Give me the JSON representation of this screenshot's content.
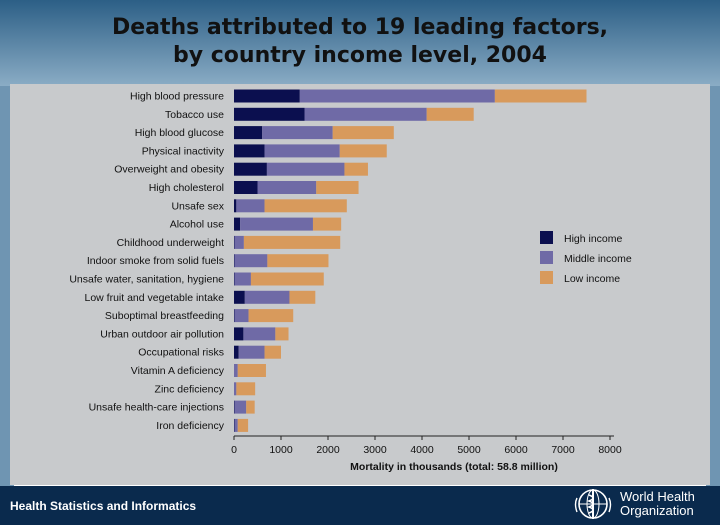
{
  "title": {
    "line1": "Deaths attributed to 19 leading factors,",
    "line2": "by country income level, 2004"
  },
  "footer": {
    "left_text": "Health Statistics and Informatics",
    "org_line1": "World Health",
    "org_line2": "Organization",
    "logo_icon": "who-emblem-icon"
  },
  "colors": {
    "high": "#0b0f4f",
    "middle": "#6f6aa6",
    "low": "#d89a5c",
    "panel": "#c8cacc",
    "footer": "#0a2a4d"
  },
  "chart_data": {
    "type": "bar",
    "orientation": "horizontal",
    "stacked": true,
    "title": "Deaths attributed to 19 leading factors, by country income level, 2004",
    "xlabel": "Mortality in thousands (total: 58.8 million)",
    "ylabel": "",
    "xlim": [
      0,
      8000
    ],
    "xticks": [
      0,
      1000,
      2000,
      3000,
      4000,
      5000,
      6000,
      7000,
      8000
    ],
    "legend_position": "right",
    "categories": [
      "High blood pressure",
      "Tobacco use",
      "High blood glucose",
      "Physical inactivity",
      "Overweight and obesity",
      "High cholesterol",
      "Unsafe sex",
      "Alcohol use",
      "Childhood underweight",
      "Indoor smoke from solid fuels",
      "Unsafe water, sanitation, hygiene",
      "Low fruit and vegetable intake",
      "Suboptimal breastfeeding",
      "Urban outdoor air pollution",
      "Occupational risks",
      "Vitamin A deficiency",
      "Zinc deficiency",
      "Unsafe health-care injections",
      "Iron deficiency"
    ],
    "series": [
      {
        "name": "High income",
        "color": "#0b0f4f",
        "values": [
          1400,
          1500,
          600,
          650,
          700,
          500,
          50,
          130,
          10,
          10,
          10,
          230,
          10,
          200,
          100,
          0,
          0,
          10,
          10
        ]
      },
      {
        "name": "Middle income",
        "color": "#6f6aa6",
        "values": [
          4150,
          2600,
          1500,
          1600,
          1650,
          1250,
          600,
          1550,
          200,
          700,
          350,
          950,
          300,
          680,
          550,
          80,
          50,
          250,
          70
        ]
      },
      {
        "name": "Low income",
        "color": "#d89a5c",
        "values": [
          1950,
          1000,
          1300,
          1000,
          500,
          900,
          1750,
          600,
          2050,
          1300,
          1550,
          550,
          950,
          280,
          350,
          600,
          400,
          180,
          220
        ]
      }
    ]
  }
}
